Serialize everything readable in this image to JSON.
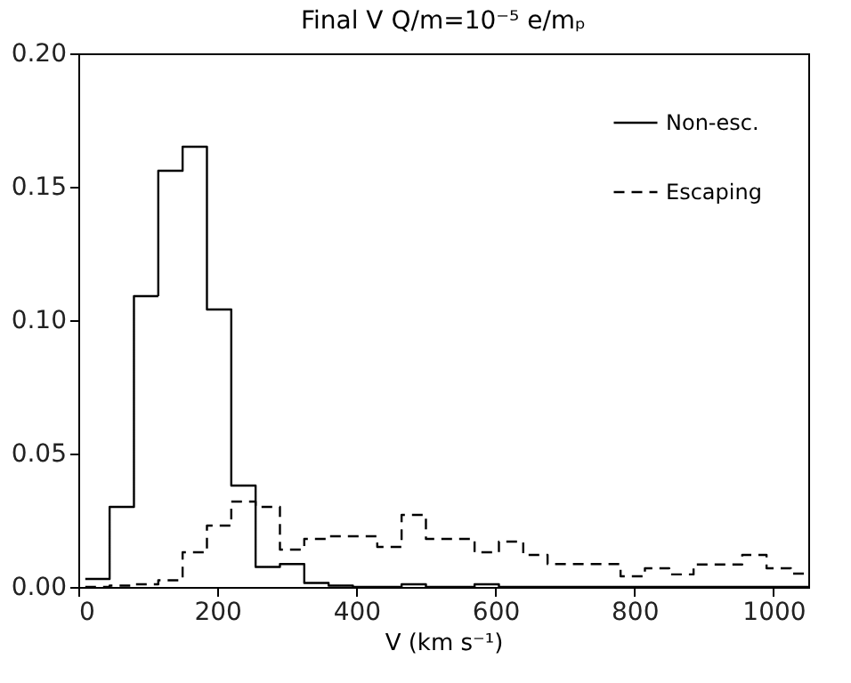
{
  "chart_data": {
    "type": "histogram",
    "title": "Final V Q/m=10⁻⁵ e/mₚ",
    "xlabel": "V (km s⁻¹)",
    "bins": [
      10,
      45,
      80,
      115,
      150,
      185,
      220,
      255,
      290,
      325,
      360,
      395,
      430,
      465,
      500,
      535,
      570,
      605,
      640,
      675,
      710,
      745,
      780,
      815,
      850,
      885,
      920,
      955,
      990,
      1025,
      1050
    ],
    "series": [
      {
        "name": "Non-esc.",
        "color": "#000000",
        "line_style": "solid",
        "values": [
          0.003,
          0.03,
          0.109,
          0.156,
          0.165,
          0.104,
          0.038,
          0.0075,
          0.0086,
          0.0015,
          0.0005,
          0,
          0,
          0.001,
          0,
          0,
          0.001,
          0,
          0,
          0,
          0,
          0,
          0,
          0,
          0,
          0,
          0,
          0,
          0,
          0
        ]
      },
      {
        "name": "Escaping",
        "color": "#000000",
        "line_style": "dashed",
        "values": [
          0,
          0.0005,
          0.001,
          0.0025,
          0.013,
          0.023,
          0.032,
          0.03,
          0.014,
          0.018,
          0.019,
          0.019,
          0.015,
          0.027,
          0.018,
          0.018,
          0.013,
          0.017,
          0.012,
          0.0086,
          0.0086,
          0.0086,
          0.004,
          0.007,
          0.0047,
          0.0084,
          0.0084,
          0.012,
          0.007,
          0.005
        ]
      }
    ],
    "xlim": [
      0,
      1050
    ],
    "xticks": [
      0,
      200,
      400,
      600,
      800,
      1000
    ],
    "ylim": [
      0,
      0.2
    ],
    "yticks": [
      {
        "value": 0,
        "label": "0.00"
      },
      {
        "value": 0.05,
        "label": "0.05"
      },
      {
        "value": 0.1,
        "label": "0.10"
      },
      {
        "value": 0.15,
        "label": "0.15"
      },
      {
        "value": 0.2,
        "label": "0.20"
      }
    ],
    "grid": false,
    "legend": "top right"
  }
}
